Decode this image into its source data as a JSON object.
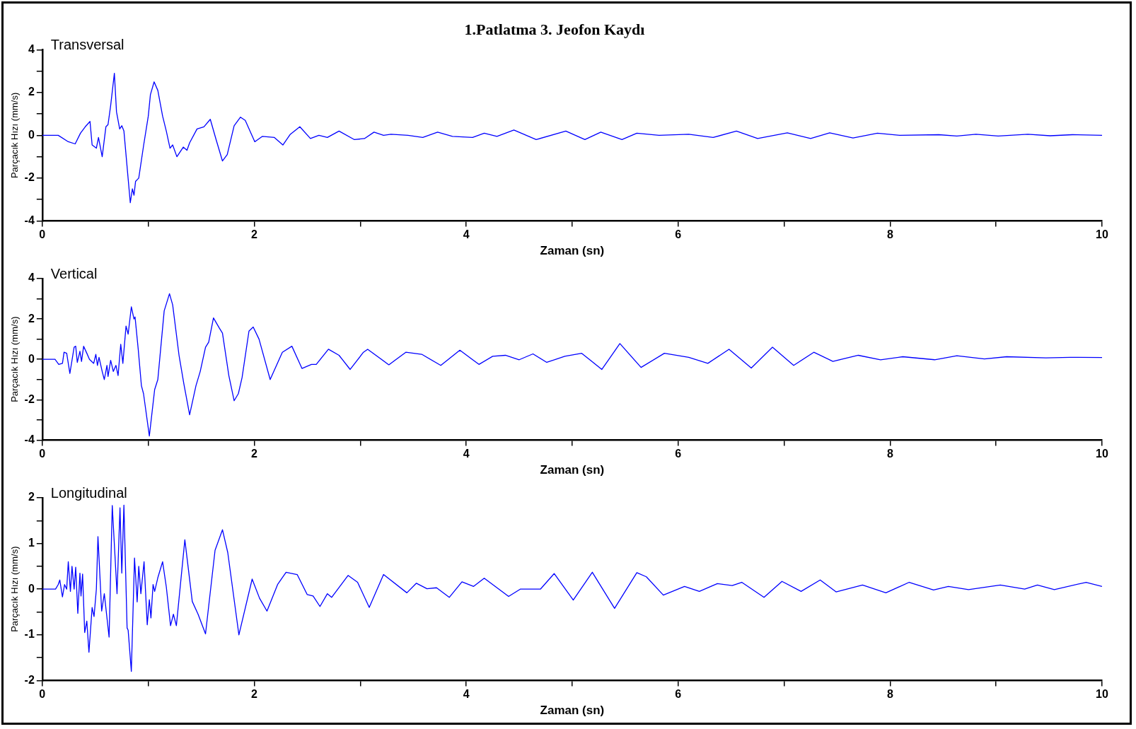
{
  "chart_data": [
    {
      "type": "line",
      "title": "1.Patlatma 3. Jeofon Kaydı",
      "subtitle": "Transversal",
      "xlabel": "Zaman (sn)",
      "ylabel": "Parçacık Hızı (mm/s)",
      "color": "#0000ff",
      "xlim": [
        0,
        10
      ],
      "xticks": [
        0,
        {
          "value": 1,
          "label": null
        },
        2,
        {
          "value": 3,
          "label": null
        },
        4,
        {
          "value": 5,
          "label": null
        },
        6,
        {
          "value": 7,
          "label": null
        },
        8,
        {
          "value": 9,
          "label": null
        },
        10
      ],
      "ylim": [
        -4,
        4
      ],
      "yticks": [
        -4,
        {
          "value": -3,
          "label": null
        },
        -2,
        {
          "value": -1,
          "label": null
        },
        0,
        {
          "value": 1,
          "label": null
        },
        2,
        {
          "value": 3,
          "label": null
        },
        4
      ],
      "x": [
        0,
        0.15,
        0.245,
        0.31,
        0.36,
        0.405,
        0.45,
        0.47,
        0.51,
        0.53,
        0.565,
        0.6,
        0.62,
        0.645,
        0.68,
        0.7,
        0.73,
        0.75,
        0.77,
        0.83,
        0.85,
        0.865,
        0.88,
        0.91,
        0.955,
        1.0,
        1.02,
        1.055,
        1.09,
        1.135,
        1.17,
        1.205,
        1.23,
        1.27,
        1.33,
        1.365,
        1.39,
        1.46,
        1.525,
        1.585,
        1.64,
        1.7,
        1.745,
        1.81,
        1.87,
        1.915,
        2.005,
        2.075,
        2.19,
        2.27,
        2.34,
        2.43,
        2.53,
        2.61,
        2.69,
        2.8,
        2.945,
        3.04,
        3.13,
        3.22,
        3.29,
        3.45,
        3.59,
        3.73,
        3.87,
        4.06,
        4.17,
        4.29,
        4.45,
        4.66,
        4.94,
        5.12,
        5.27,
        5.47,
        5.61,
        5.82,
        6.1,
        6.33,
        6.55,
        6.75,
        7.03,
        7.25,
        7.43,
        7.65,
        7.88,
        8.09,
        8.46,
        8.63,
        8.81,
        9.02,
        9.3,
        9.51,
        9.72,
        10
      ],
      "values": [
        0,
        0,
        -0.3,
        -0.4,
        0.1,
        0.4,
        0.65,
        -0.45,
        -0.6,
        -0.1,
        -1.0,
        0.4,
        0.5,
        1.4,
        2.9,
        1.1,
        0.3,
        0.45,
        0.2,
        -3.15,
        -2.5,
        -2.8,
        -2.15,
        -2.0,
        -0.5,
        0.9,
        1.9,
        2.5,
        2.1,
        0.9,
        0.2,
        -0.6,
        -0.45,
        -1.0,
        -0.55,
        -0.7,
        -0.35,
        0.3,
        0.4,
        0.75,
        -0.2,
        -1.2,
        -0.9,
        0.45,
        0.85,
        0.7,
        -0.3,
        -0.05,
        -0.1,
        -0.45,
        0.05,
        0.4,
        -0.15,
        0,
        -0.1,
        0.2,
        -0.2,
        -0.15,
        0.15,
        0,
        0.05,
        0,
        -0.1,
        0.15,
        -0.05,
        -0.1,
        0.1,
        -0.05,
        0.25,
        -0.2,
        0.2,
        -0.2,
        0.15,
        -0.2,
        0.1,
        0,
        0.05,
        -0.1,
        0.2,
        -0.15,
        0.12,
        -0.15,
        0.12,
        -0.12,
        0.1,
        0,
        0.03,
        -0.03,
        0.05,
        -0.03,
        0.05,
        -0.02,
        0.03,
        0
      ]
    },
    {
      "type": "line",
      "subtitle": "Vertical",
      "xlabel": "Zaman (sn)",
      "ylabel": "Parçacık Hızı (mm/s)",
      "color": "#0000ff",
      "xlim": [
        0,
        10
      ],
      "xticks": [
        0,
        {
          "value": 1,
          "label": null
        },
        2,
        {
          "value": 3,
          "label": null
        },
        4,
        {
          "value": 5,
          "label": null
        },
        6,
        {
          "value": 7,
          "label": null
        },
        8,
        {
          "value": 9,
          "label": null
        },
        10
      ],
      "ylim": [
        -4,
        4
      ],
      "yticks": [
        -4,
        {
          "value": -3,
          "label": null
        },
        -2,
        {
          "value": -1,
          "label": null
        },
        0,
        {
          "value": 1,
          "label": null
        },
        2,
        {
          "value": 3,
          "label": null
        },
        4
      ],
      "x": [
        0,
        0.12,
        0.155,
        0.19,
        0.205,
        0.23,
        0.26,
        0.3,
        0.315,
        0.33,
        0.355,
        0.37,
        0.39,
        0.42,
        0.445,
        0.485,
        0.505,
        0.52,
        0.535,
        0.565,
        0.585,
        0.61,
        0.62,
        0.645,
        0.67,
        0.695,
        0.715,
        0.74,
        0.76,
        0.79,
        0.81,
        0.84,
        0.865,
        0.875,
        0.905,
        0.935,
        0.955,
        1.01,
        1.06,
        1.09,
        1.15,
        1.2,
        1.23,
        1.29,
        1.335,
        1.39,
        1.45,
        1.49,
        1.54,
        1.57,
        1.615,
        1.67,
        1.7,
        1.76,
        1.81,
        1.85,
        1.885,
        1.95,
        1.99,
        2.045,
        2.15,
        2.265,
        2.355,
        2.45,
        2.54,
        2.585,
        2.7,
        2.8,
        2.905,
        3.03,
        3.07,
        3.27,
        3.43,
        3.58,
        3.76,
        3.94,
        4.12,
        4.25,
        4.37,
        4.5,
        4.63,
        4.76,
        4.93,
        5.09,
        5.28,
        5.45,
        5.65,
        5.87,
        6.1,
        6.28,
        6.48,
        6.69,
        6.89,
        7.09,
        7.28,
        7.46,
        7.7,
        7.91,
        8.12,
        8.42,
        8.63,
        8.89,
        9.1,
        9.47,
        9.7,
        10
      ],
      "values": [
        0,
        0,
        -0.25,
        -0.2,
        0.35,
        0.3,
        -0.7,
        0.6,
        0.65,
        -0.15,
        0.4,
        -0.1,
        0.65,
        0.3,
        0,
        -0.2,
        0.25,
        -0.3,
        0.1,
        -0.6,
        -1.0,
        -0.3,
        -0.85,
        -0.05,
        -0.6,
        -0.3,
        -0.8,
        0.75,
        -0.2,
        1.65,
        1.25,
        2.6,
        2.0,
        2.1,
        0.5,
        -1.3,
        -1.7,
        -3.8,
        -1.5,
        -1.0,
        2.4,
        3.25,
        2.7,
        0.2,
        -1.2,
        -2.75,
        -1.3,
        -0.6,
        0.6,
        0.85,
        2.05,
        1.55,
        1.3,
        -0.8,
        -2.05,
        -1.7,
        -0.9,
        1.4,
        1.6,
        1.0,
        -1.0,
        0.35,
        0.65,
        -0.45,
        -0.25,
        -0.25,
        0.5,
        0.2,
        -0.5,
        0.35,
        0.5,
        -0.27,
        0.35,
        0.25,
        -0.3,
        0.45,
        -0.25,
        0.15,
        0.2,
        -0.02,
        0.27,
        -0.15,
        0.15,
        0.3,
        -0.5,
        0.78,
        -0.4,
        0.3,
        0.1,
        -0.2,
        0.5,
        -0.43,
        0.6,
        -0.3,
        0.35,
        -0.1,
        0.2,
        -0.02,
        0.13,
        -0.02,
        0.18,
        0.02,
        0.13,
        0.07,
        0.1,
        0.09
      ]
    },
    {
      "type": "line",
      "subtitle": "Longitudinal",
      "xlabel": "Zaman (sn)",
      "ylabel": "Parçacık Hızı (mm/s)",
      "color": "#0000ff",
      "xlim": [
        0,
        10
      ],
      "xticks": [
        0,
        {
          "value": 1,
          "label": null
        },
        2,
        {
          "value": 3,
          "label": null
        },
        4,
        {
          "value": 5,
          "label": null
        },
        6,
        {
          "value": 7,
          "label": null
        },
        8,
        {
          "value": 9,
          "label": null
        },
        10
      ],
      "ylim": [
        -2,
        2
      ],
      "yticks": [
        -2,
        {
          "value": -1.5,
          "label": null
        },
        -1,
        {
          "value": -0.5,
          "label": null
        },
        0,
        {
          "value": 0.5,
          "label": null
        },
        1,
        {
          "value": 1.5,
          "label": null
        },
        2
      ],
      "x": [
        0,
        0.125,
        0.15,
        0.165,
        0.19,
        0.21,
        0.23,
        0.245,
        0.265,
        0.28,
        0.3,
        0.315,
        0.335,
        0.355,
        0.365,
        0.38,
        0.4,
        0.42,
        0.44,
        0.47,
        0.488,
        0.51,
        0.525,
        0.56,
        0.585,
        0.63,
        0.66,
        0.705,
        0.733,
        0.75,
        0.77,
        0.8,
        0.81,
        0.84,
        0.87,
        0.895,
        0.91,
        0.93,
        0.96,
        0.99,
        1.01,
        1.025,
        1.045,
        1.06,
        1.09,
        1.135,
        1.17,
        1.21,
        1.237,
        1.265,
        1.345,
        1.415,
        1.47,
        1.54,
        1.63,
        1.7,
        1.75,
        1.855,
        1.98,
        2.05,
        2.12,
        2.22,
        2.3,
        2.405,
        2.5,
        2.555,
        2.62,
        2.69,
        2.73,
        2.885,
        2.975,
        3.085,
        3.22,
        3.44,
        3.53,
        3.63,
        3.72,
        3.84,
        3.96,
        4.07,
        4.17,
        4.4,
        4.51,
        4.7,
        4.83,
        5.01,
        5.19,
        5.4,
        5.61,
        5.7,
        5.86,
        6.06,
        6.2,
        6.37,
        6.51,
        6.6,
        6.81,
        6.98,
        7.16,
        7.34,
        7.49,
        7.74,
        7.96,
        8.18,
        8.41,
        8.55,
        8.74,
        9.04,
        9.27,
        9.39,
        9.55,
        9.85,
        10
      ],
      "values": [
        0,
        0,
        0.1,
        0.2,
        -0.17,
        0.1,
        0,
        0.6,
        -0.05,
        0.5,
        0,
        0.48,
        -0.53,
        0.35,
        -0.15,
        0.33,
        -0.95,
        -0.7,
        -1.38,
        -0.4,
        -0.6,
        0,
        1.15,
        -0.48,
        -0.1,
        -1.05,
        1.83,
        -0.1,
        1.78,
        0.35,
        1.84,
        -0.85,
        -0.9,
        -1.8,
        0.68,
        -0.28,
        0.5,
        -0.1,
        0.6,
        -0.78,
        -0.23,
        -0.63,
        0.1,
        -0.05,
        0.25,
        0.6,
        0.05,
        -0.8,
        -0.55,
        -0.8,
        1.08,
        -0.27,
        -0.55,
        -0.98,
        0.85,
        1.3,
        0.8,
        -1.0,
        0.22,
        -0.2,
        -0.48,
        0.1,
        0.37,
        0.32,
        -0.12,
        -0.15,
        -0.38,
        -0.1,
        -0.18,
        0.3,
        0.15,
        -0.4,
        0.32,
        -0.08,
        0.13,
        0.01,
        0.03,
        -0.18,
        0.16,
        0.06,
        0.24,
        -0.16,
        0,
        0,
        0.34,
        -0.24,
        0.37,
        -0.42,
        0.36,
        0.27,
        -0.13,
        0.06,
        -0.05,
        0.12,
        0.08,
        0.15,
        -0.18,
        0.17,
        -0.05,
        0.2,
        -0.06,
        0.09,
        -0.08,
        0.15,
        -0.02,
        0.06,
        -0.01,
        0.09,
        0,
        0.09,
        -0.01,
        0.15,
        0.06
      ]
    }
  ]
}
